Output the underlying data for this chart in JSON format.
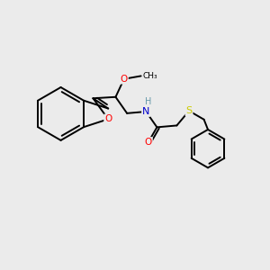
{
  "background_color": "#ebebeb",
  "bond_color": "#000000",
  "atom_colors": {
    "O": "#ff0000",
    "N": "#0000cc",
    "S": "#cccc00",
    "H": "#6699aa",
    "C": "#000000"
  },
  "figsize": [
    3.0,
    3.0
  ],
  "dpi": 100,
  "xlim": [
    0,
    10
  ],
  "ylim": [
    0,
    10
  ]
}
